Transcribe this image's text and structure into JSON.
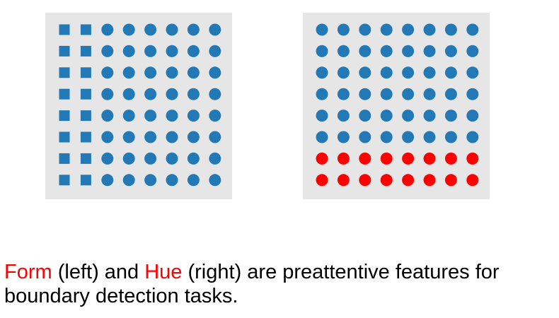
{
  "diagram": {
    "rows": 8,
    "cols": 8,
    "left_panel": {
      "feature": "form",
      "boundary": "square shapes in first 2 columns, circles elsewhere",
      "square_columns": 2,
      "color": "#2379b5"
    },
    "right_panel": {
      "feature": "hue",
      "boundary": "red circles in last 2 rows, blue circles elsewhere",
      "red_rows": 2,
      "base_color": "#2379b5",
      "highlight_color": "#ff0000"
    }
  },
  "caption": {
    "word1": "Form",
    "text1": " (left) and ",
    "word2": "Hue",
    "text2": " (right) are preattentive features for boundary detection tasks."
  },
  "colors": {
    "panel_bg": "#e6e6e6",
    "accent": "#ff0000"
  }
}
